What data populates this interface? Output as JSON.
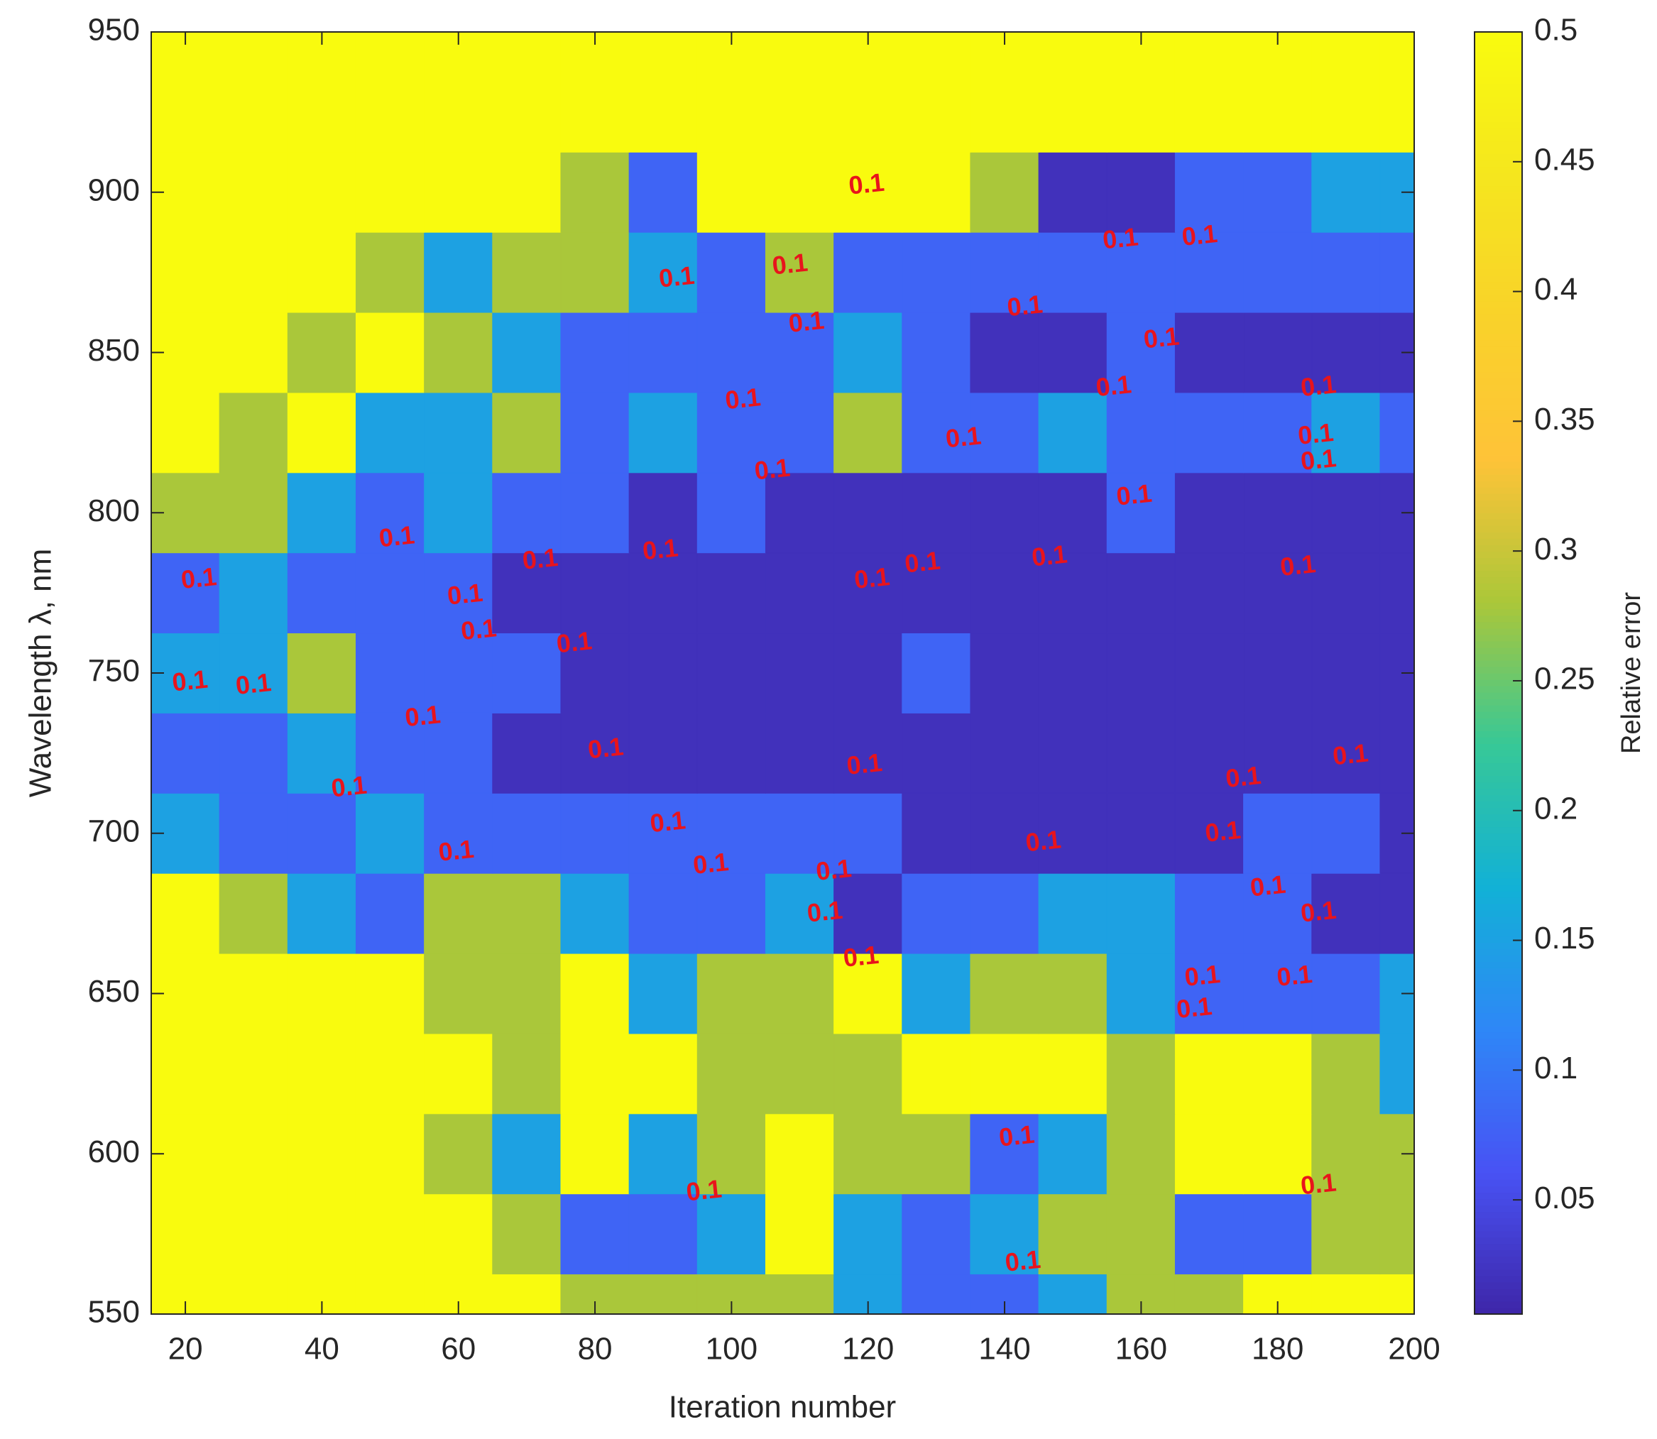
{
  "chart_data": {
    "type": "contourf",
    "xlabel": "Iteration number",
    "ylabel": "Wavelength λ, nm",
    "xlim": [
      15,
      200
    ],
    "ylim": [
      550,
      950
    ],
    "xticks": [
      20,
      40,
      60,
      80,
      100,
      120,
      140,
      160,
      180,
      200
    ],
    "yticks": [
      550,
      600,
      650,
      700,
      750,
      800,
      850,
      900,
      950
    ],
    "x": [
      20,
      30,
      40,
      50,
      60,
      70,
      80,
      90,
      100,
      110,
      120,
      130,
      140,
      150,
      160,
      170,
      180,
      190,
      200
    ],
    "y": [
      550,
      575,
      600,
      625,
      650,
      675,
      700,
      725,
      750,
      775,
      800,
      825,
      850,
      875,
      900,
      925,
      950
    ],
    "z": [
      [
        0.5,
        0.5,
        0.5,
        0.5,
        0.5,
        0.5,
        0.28,
        0.28,
        0.28,
        0.28,
        0.15,
        0.08,
        0.08,
        0.15,
        0.28,
        0.28,
        0.5,
        0.5,
        0.5
      ],
      [
        0.5,
        0.5,
        0.5,
        0.5,
        0.5,
        0.28,
        0.08,
        0.08,
        0.15,
        0.5,
        0.15,
        0.08,
        0.15,
        0.28,
        0.28,
        0.08,
        0.08,
        0.28,
        0.28
      ],
      [
        0.5,
        0.5,
        0.5,
        0.5,
        0.28,
        0.15,
        0.5,
        0.15,
        0.28,
        0.5,
        0.28,
        0.28,
        0.08,
        0.15,
        0.28,
        0.5,
        0.5,
        0.28,
        0.28
      ],
      [
        0.5,
        0.5,
        0.5,
        0.5,
        0.5,
        0.28,
        0.5,
        0.5,
        0.28,
        0.28,
        0.28,
        0.5,
        0.5,
        0.5,
        0.28,
        0.5,
        0.5,
        0.28,
        0.15
      ],
      [
        0.5,
        0.5,
        0.5,
        0.5,
        0.28,
        0.28,
        0.5,
        0.15,
        0.28,
        0.28,
        0.5,
        0.15,
        0.28,
        0.28,
        0.15,
        0.08,
        0.08,
        0.08,
        0.15
      ],
      [
        0.5,
        0.28,
        0.15,
        0.08,
        0.28,
        0.28,
        0.15,
        0.08,
        0.08,
        0.15,
        0.02,
        0.08,
        0.08,
        0.15,
        0.15,
        0.08,
        0.08,
        0.02,
        0.02
      ],
      [
        0.15,
        0.08,
        0.08,
        0.15,
        0.08,
        0.08,
        0.08,
        0.08,
        0.08,
        0.08,
        0.08,
        0.02,
        0.02,
        0.02,
        0.02,
        0.02,
        0.08,
        0.08,
        0.02
      ],
      [
        0.08,
        0.08,
        0.15,
        0.08,
        0.08,
        0.02,
        0.02,
        0.02,
        0.02,
        0.02,
        0.02,
        0.02,
        0.02,
        0.02,
        0.02,
        0.02,
        0.02,
        0.02,
        0.02
      ],
      [
        0.15,
        0.15,
        0.28,
        0.08,
        0.08,
        0.08,
        0.02,
        0.02,
        0.02,
        0.02,
        0.02,
        0.08,
        0.02,
        0.02,
        0.02,
        0.02,
        0.02,
        0.02,
        0.02
      ],
      [
        0.08,
        0.15,
        0.08,
        0.08,
        0.08,
        0.02,
        0.02,
        0.02,
        0.02,
        0.02,
        0.02,
        0.02,
        0.02,
        0.02,
        0.02,
        0.02,
        0.02,
        0.02,
        0.02
      ],
      [
        0.28,
        0.28,
        0.15,
        0.08,
        0.15,
        0.08,
        0.08,
        0.02,
        0.08,
        0.02,
        0.02,
        0.02,
        0.02,
        0.02,
        0.08,
        0.02,
        0.02,
        0.02,
        0.02
      ],
      [
        0.5,
        0.28,
        0.5,
        0.15,
        0.15,
        0.28,
        0.08,
        0.15,
        0.08,
        0.08,
        0.28,
        0.08,
        0.08,
        0.15,
        0.08,
        0.08,
        0.08,
        0.15,
        0.08
      ],
      [
        0.5,
        0.5,
        0.28,
        0.5,
        0.28,
        0.15,
        0.08,
        0.08,
        0.08,
        0.08,
        0.15,
        0.08,
        0.02,
        0.02,
        0.08,
        0.02,
        0.02,
        0.02,
        0.02
      ],
      [
        0.5,
        0.5,
        0.5,
        0.28,
        0.15,
        0.28,
        0.28,
        0.15,
        0.08,
        0.28,
        0.08,
        0.08,
        0.08,
        0.08,
        0.08,
        0.08,
        0.08,
        0.08,
        0.08
      ],
      [
        0.5,
        0.5,
        0.5,
        0.5,
        0.5,
        0.5,
        0.28,
        0.08,
        0.5,
        0.5,
        0.5,
        0.5,
        0.28,
        0.02,
        0.02,
        0.08,
        0.08,
        0.15,
        0.15
      ],
      [
        0.5,
        0.5,
        0.5,
        0.5,
        0.5,
        0.5,
        0.5,
        0.5,
        0.5,
        0.5,
        0.5,
        0.5,
        0.5,
        0.5,
        0.5,
        0.5,
        0.5,
        0.5,
        0.5
      ],
      [
        0.5,
        0.5,
        0.5,
        0.5,
        0.5,
        0.5,
        0.5,
        0.5,
        0.5,
        0.5,
        0.5,
        0.5,
        0.5,
        0.5,
        0.5,
        0.5,
        0.5,
        0.5,
        0.5
      ]
    ],
    "contour_labels": [
      {
        "x": 119.8,
        "y": 902,
        "value": 0.1
      },
      {
        "x": 157,
        "y": 885,
        "value": 0.1
      },
      {
        "x": 168.6,
        "y": 886,
        "value": 0.1
      },
      {
        "x": 92,
        "y": 873,
        "value": 0.1
      },
      {
        "x": 108.6,
        "y": 877,
        "value": 0.1
      },
      {
        "x": 111,
        "y": 859,
        "value": 0.1
      },
      {
        "x": 143,
        "y": 864,
        "value": 0.1
      },
      {
        "x": 163,
        "y": 854,
        "value": 0.1
      },
      {
        "x": 156,
        "y": 839,
        "value": 0.1
      },
      {
        "x": 186,
        "y": 839,
        "value": 0.1
      },
      {
        "x": 185.6,
        "y": 824,
        "value": 0.1
      },
      {
        "x": 186,
        "y": 816,
        "value": 0.1
      },
      {
        "x": 101.7,
        "y": 835,
        "value": 0.1
      },
      {
        "x": 134,
        "y": 823,
        "value": 0.1
      },
      {
        "x": 106,
        "y": 813,
        "value": 0.1
      },
      {
        "x": 159,
        "y": 805,
        "value": 0.1
      },
      {
        "x": 51,
        "y": 792,
        "value": 0.1
      },
      {
        "x": 22,
        "y": 779,
        "value": 0.1
      },
      {
        "x": 72,
        "y": 785,
        "value": 0.1
      },
      {
        "x": 89.6,
        "y": 788,
        "value": 0.1
      },
      {
        "x": 120.6,
        "y": 779,
        "value": 0.1
      },
      {
        "x": 128,
        "y": 784,
        "value": 0.1
      },
      {
        "x": 146.6,
        "y": 786,
        "value": 0.1
      },
      {
        "x": 183,
        "y": 783,
        "value": 0.1
      },
      {
        "x": 61,
        "y": 774,
        "value": 0.1
      },
      {
        "x": 63,
        "y": 763,
        "value": 0.1
      },
      {
        "x": 77,
        "y": 759,
        "value": 0.1
      },
      {
        "x": 20.7,
        "y": 747,
        "value": 0.1
      },
      {
        "x": 30,
        "y": 746,
        "value": 0.1
      },
      {
        "x": 54.8,
        "y": 736,
        "value": 0.1
      },
      {
        "x": 81.6,
        "y": 726,
        "value": 0.1
      },
      {
        "x": 119.5,
        "y": 721,
        "value": 0.1
      },
      {
        "x": 175,
        "y": 717,
        "value": 0.1
      },
      {
        "x": 190.7,
        "y": 724,
        "value": 0.1
      },
      {
        "x": 44,
        "y": 714,
        "value": 0.1
      },
      {
        "x": 90.7,
        "y": 703,
        "value": 0.1
      },
      {
        "x": 172,
        "y": 700,
        "value": 0.1
      },
      {
        "x": 145.7,
        "y": 697,
        "value": 0.1
      },
      {
        "x": 59.7,
        "y": 694,
        "value": 0.1
      },
      {
        "x": 97,
        "y": 690,
        "value": 0.1
      },
      {
        "x": 115,
        "y": 688,
        "value": 0.1
      },
      {
        "x": 178.6,
        "y": 683,
        "value": 0.1
      },
      {
        "x": 113.7,
        "y": 675,
        "value": 0.1
      },
      {
        "x": 186,
        "y": 675,
        "value": 0.1
      },
      {
        "x": 119,
        "y": 661,
        "value": 0.1
      },
      {
        "x": 169,
        "y": 655,
        "value": 0.1
      },
      {
        "x": 182.5,
        "y": 655,
        "value": 0.1
      },
      {
        "x": 167.8,
        "y": 645,
        "value": 0.1
      },
      {
        "x": 141.8,
        "y": 605,
        "value": 0.1
      },
      {
        "x": 96,
        "y": 588,
        "value": 0.1
      },
      {
        "x": 186,
        "y": 590,
        "value": 0.1
      },
      {
        "x": 142.7,
        "y": 566,
        "value": 0.1
      }
    ],
    "colorbar": {
      "label": "Relative error",
      "lim": [
        0.006,
        0.5
      ],
      "ticks": [
        0.05,
        0.1,
        0.15,
        0.2,
        0.25,
        0.3,
        0.35,
        0.4,
        0.45,
        0.5
      ]
    }
  }
}
